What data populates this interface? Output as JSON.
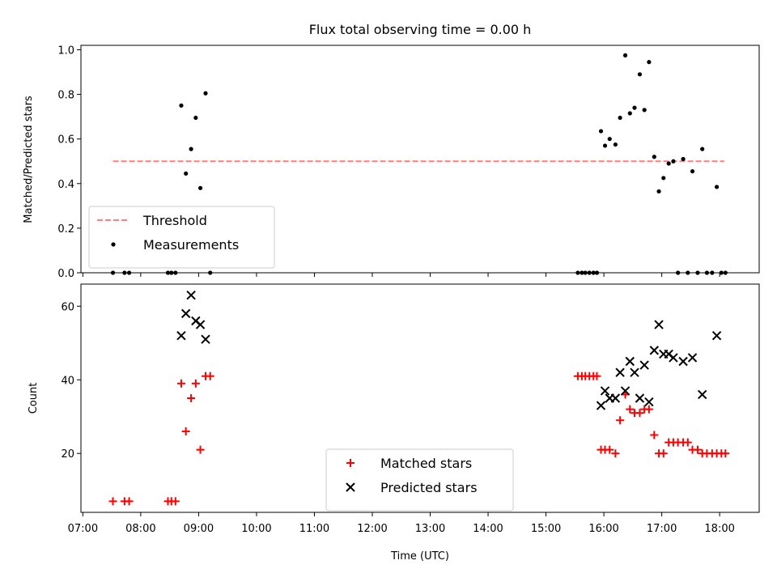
{
  "chart_data": [
    {
      "type": "scatter",
      "title": "Flux total observing time = 0.00 h",
      "xlabel": "",
      "ylabel": "Matched/Predicted stars",
      "xlim": [
        6.967,
        18.683
      ],
      "ylim": [
        0.0,
        1.02
      ],
      "yticks": [
        0.0,
        0.2,
        0.4,
        0.6,
        0.8,
        1.0
      ],
      "ytick_labels": [
        "0.0",
        "0.2",
        "0.4",
        "0.6",
        "0.8",
        "1.0"
      ],
      "xtick_values": [
        7,
        8,
        9,
        10,
        11,
        12,
        13,
        14,
        15,
        16,
        17,
        18
      ],
      "xtick_labels": [
        "",
        "",
        "",
        "",
        "",
        "",
        "",
        "",
        "",
        "",
        "",
        ""
      ],
      "legend_position": "lower-left",
      "lines": [
        {
          "name": "Threshold",
          "color": "#ff7f7f",
          "style": "dashed",
          "x": [
            7.52,
            18.08
          ],
          "y": [
            0.5,
            0.5
          ]
        }
      ],
      "series": [
        {
          "name": "Measurements",
          "color": "#000000",
          "marker": "dot",
          "x": [
            7.52,
            7.72,
            7.8,
            8.47,
            8.53,
            8.6,
            8.7,
            8.78,
            8.87,
            8.95,
            9.03,
            9.12,
            9.2,
            15.55,
            15.62,
            15.68,
            15.75,
            15.82,
            15.88,
            15.95,
            16.02,
            16.1,
            16.2,
            16.28,
            16.37,
            16.45,
            16.53,
            16.62,
            16.7,
            16.78,
            16.87,
            16.95,
            17.03,
            17.12,
            17.2,
            17.28,
            17.37,
            17.45,
            17.53,
            17.62,
            17.7,
            17.78,
            17.87,
            17.95,
            18.03,
            18.1
          ],
          "y": [
            0.0,
            0.0,
            0.0,
            0.0,
            0.0,
            0.0,
            0.75,
            0.445,
            0.555,
            0.695,
            0.38,
            0.805,
            0.0,
            0.0,
            0.0,
            0.0,
            0.0,
            0.0,
            0.0,
            0.635,
            0.57,
            0.6,
            0.575,
            0.695,
            0.975,
            0.715,
            0.74,
            0.89,
            0.73,
            0.945,
            0.52,
            0.365,
            0.425,
            0.49,
            0.5,
            0.0,
            0.51,
            0.0,
            0.455,
            0.0,
            0.555,
            0.0,
            0.0,
            0.385,
            0.0,
            0.0
          ]
        }
      ]
    },
    {
      "type": "scatter",
      "title": "",
      "xlabel": "Time (UTC)",
      "ylabel": "Count",
      "xlim": [
        6.967,
        18.683
      ],
      "ylim": [
        4.0,
        66.0
      ],
      "yticks": [
        20,
        40,
        60
      ],
      "ytick_labels": [
        "20",
        "40",
        "60"
      ],
      "xtick_values": [
        7,
        8,
        9,
        10,
        11,
        12,
        13,
        14,
        15,
        16,
        17,
        18
      ],
      "xtick_labels": [
        "07:00",
        "08:00",
        "09:00",
        "10:00",
        "11:00",
        "12:00",
        "13:00",
        "14:00",
        "15:00",
        "16:00",
        "17:00",
        "18:00"
      ],
      "legend_position": "lower-center",
      "series": [
        {
          "name": "Matched stars",
          "color": "#ff0000",
          "marker": "plus",
          "x": [
            7.52,
            7.72,
            7.8,
            8.47,
            8.53,
            8.6,
            8.7,
            8.78,
            8.87,
            8.95,
            9.03,
            9.12,
            9.2,
            15.55,
            15.62,
            15.68,
            15.75,
            15.82,
            15.88,
            15.95,
            16.02,
            16.1,
            16.2,
            16.28,
            16.37,
            16.45,
            16.53,
            16.62,
            16.7,
            16.78,
            16.87,
            16.95,
            17.03,
            17.12,
            17.2,
            17.28,
            17.37,
            17.45,
            17.53,
            17.62,
            17.7,
            17.78,
            17.87,
            17.95,
            18.03,
            18.1
          ],
          "y": [
            7,
            7,
            7,
            7,
            7,
            7,
            39,
            26,
            35,
            39,
            21,
            41,
            41,
            41,
            41,
            41,
            41,
            41,
            41,
            21,
            21,
            21,
            20,
            29,
            36,
            32,
            31,
            31,
            32,
            32,
            25,
            20,
            20,
            23,
            23,
            23,
            23,
            23,
            21,
            21,
            20,
            20,
            20,
            20,
            20,
            20
          ]
        },
        {
          "name": "Predicted stars",
          "color": "#000000",
          "marker": "x",
          "x": [
            8.7,
            8.78,
            8.87,
            8.95,
            9.03,
            9.12,
            15.95,
            16.02,
            16.1,
            16.2,
            16.28,
            16.37,
            16.45,
            16.53,
            16.62,
            16.7,
            16.78,
            16.87,
            16.95,
            17.03,
            17.12,
            17.2,
            17.37,
            17.53,
            17.7,
            17.95
          ],
          "y": [
            52,
            58,
            63,
            56,
            55,
            51,
            33,
            37,
            35,
            35,
            42,
            37,
            45,
            42,
            35,
            44,
            34,
            48,
            55,
            47,
            47,
            46,
            45,
            46,
            36,
            52
          ]
        }
      ]
    }
  ]
}
